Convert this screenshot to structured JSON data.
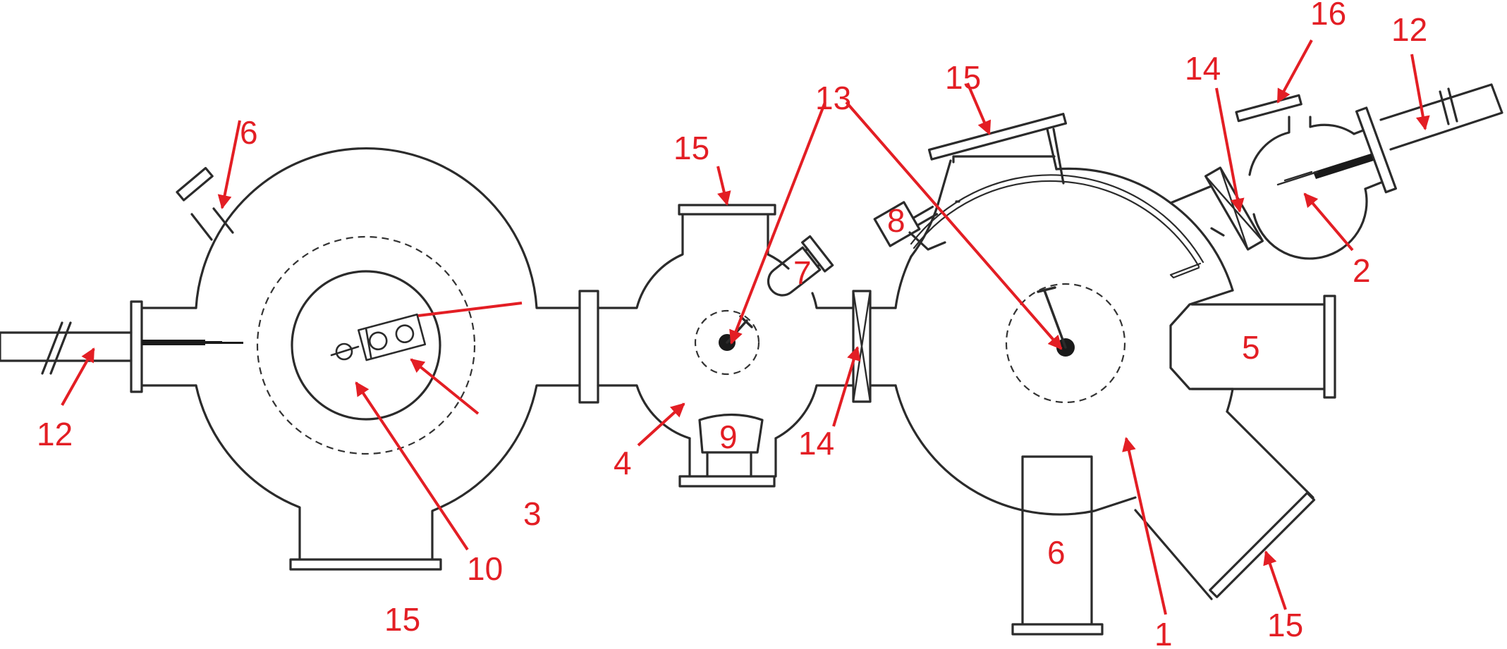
{
  "labels": {
    "l1": "1",
    "l2": "2",
    "l3": "3",
    "l4": "4",
    "l5": "5",
    "l6a": "6",
    "l6b": "6",
    "l7": "7",
    "l8": "8",
    "l9": "9",
    "l10": "10",
    "l12a": "12",
    "l12b": "12",
    "l13": "13",
    "l14a": "14",
    "l14b": "14",
    "l15a": "15",
    "l15b": "15",
    "l15c": "15",
    "l15d": "15",
    "l16": "16"
  },
  "colors": {
    "label": "#e31e24",
    "outline": "#2b2b2b"
  }
}
